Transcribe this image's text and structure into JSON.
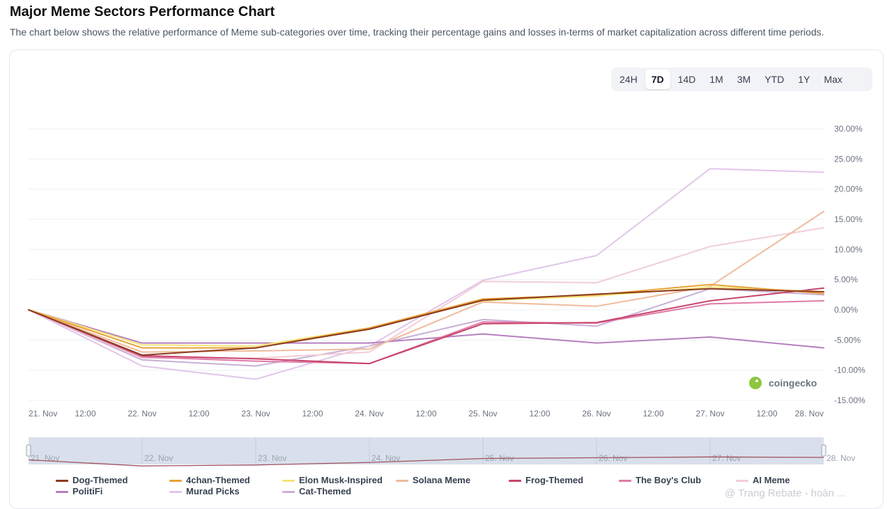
{
  "header": {
    "title": "Major Meme Sectors Performance Chart",
    "description": "The chart below shows the relative performance of Meme sub-categories over time, tracking their percentage gains and losses in-terms of market capitalization across different time periods."
  },
  "range_tabs": [
    "24H",
    "7D",
    "14D",
    "1M",
    "3M",
    "YTD",
    "1Y",
    "Max"
  ],
  "active_range": "7D",
  "logo_text": "coingecko",
  "watermark": "@ Trang Rebate - hoàn ...",
  "colors": {
    "grid": "#eef0f3",
    "axis_text": "#6b7280",
    "navigator_fill": "#d9dfec",
    "navigator_line": "#a0525f",
    "logo_green": "#8dc63f"
  },
  "chart_data": {
    "type": "line",
    "x_labels": [
      "21. Nov",
      "12:00",
      "22. Nov",
      "12:00",
      "23. Nov",
      "12:00",
      "24. Nov",
      "12:00",
      "25. Nov",
      "12:00",
      "26. Nov",
      "12:00",
      "27. Nov",
      "12:00",
      "28. Nov"
    ],
    "x": [
      0,
      1,
      2,
      3,
      4,
      5,
      6,
      7
    ],
    "y_ticks": [
      "30.00%",
      "25.00%",
      "20.00%",
      "15.00%",
      "10.00%",
      "5.00%",
      "0.00%",
      "-5.00%",
      "-10.00%",
      "-15.00%"
    ],
    "ylim": [
      -15,
      30
    ],
    "grid": true,
    "legend_position": "bottom",
    "series": [
      {
        "name": "Dog-Themed",
        "color": "#8b3a1e",
        "values": [
          0,
          -7.5,
          -6.3,
          -3.2,
          1.6,
          2.6,
          3.5,
          3.0
        ]
      },
      {
        "name": "4chan-Themed",
        "color": "#e8a23a",
        "values": [
          0,
          -6.3,
          -6.3,
          -3.0,
          1.8,
          2.5,
          4.2,
          2.7
        ]
      },
      {
        "name": "Elon Musk-Inspired",
        "color": "#f3e37a",
        "values": [
          0,
          -5.8,
          -6.0,
          -3.0,
          1.5,
          2.3,
          3.8,
          3.0
        ]
      },
      {
        "name": "Solana Meme",
        "color": "#efbb9c",
        "values": [
          0,
          -7.0,
          -6.8,
          -6.5,
          1.3,
          0.6,
          3.9,
          16.3
        ]
      },
      {
        "name": "Frog-Themed",
        "color": "#c7446a",
        "values": [
          0,
          -7.6,
          -8.1,
          -8.9,
          -2.3,
          -2.1,
          1.5,
          3.6
        ]
      },
      {
        "name": "The Boy's Club",
        "color": "#e07aa9",
        "values": [
          0,
          -7.8,
          -8.5,
          -8.9,
          -2.0,
          -2.2,
          1.0,
          1.5
        ]
      },
      {
        "name": "AI Meme",
        "color": "#f2cdd6",
        "values": [
          0,
          -8.0,
          -8.0,
          -7.0,
          4.7,
          4.5,
          10.5,
          13.6
        ]
      },
      {
        "name": "PolitiFi",
        "color": "#b67fc0",
        "values": [
          0,
          -5.5,
          -5.5,
          -5.5,
          -4.0,
          -5.5,
          -4.5,
          -6.3
        ]
      },
      {
        "name": "Murad Picks",
        "color": "#e2c6e9",
        "values": [
          0,
          -9.3,
          -11.5,
          -6.0,
          4.9,
          9.0,
          23.4,
          22.8
        ]
      },
      {
        "name": "Cat-Themed",
        "color": "#c9b0d6",
        "values": [
          0,
          -8.3,
          -9.3,
          -6.0,
          -1.6,
          -2.7,
          3.5,
          2.5
        ]
      }
    ],
    "navigator": {
      "x_labels": [
        "21. Nov",
        "22. Nov",
        "23. Nov",
        "24. Nov",
        "25. Nov",
        "26. Nov",
        "27. Nov",
        "28. Nov"
      ]
    }
  }
}
